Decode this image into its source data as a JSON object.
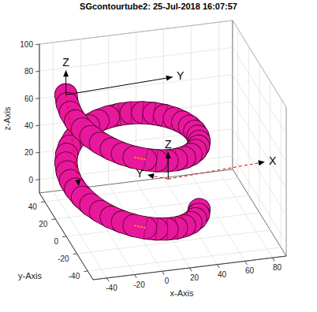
{
  "chart_data": {
    "type": "3d",
    "title": "SGcontourtube2: 25-Jul-2018 16:07:57",
    "x_label": "x-Axis",
    "y_label": "y-Axis",
    "z_label": "z-Axis",
    "xlim": [
      -50,
      90
    ],
    "ylim": [
      -50,
      50
    ],
    "zlim": [
      -10,
      100
    ],
    "xticks": [
      -40,
      -20,
      0,
      20,
      40,
      60,
      80
    ],
    "yticks": [
      -40,
      -20,
      0,
      20,
      40
    ],
    "zticks": [
      0,
      20,
      40,
      60,
      80,
      100
    ],
    "grid": true,
    "series": [
      {
        "type": "tube",
        "color": "#e8189c",
        "tube_radius": 8,
        "x": [
          42.3,
          39,
          34.5,
          28.9,
          22.5,
          15.4,
          7.8,
          0,
          -7.8,
          -15.4,
          -22.5,
          -28.9,
          -34.5,
          -39,
          -42.3,
          -44.3,
          -45,
          -44.3,
          -42.3,
          -39,
          -34.5,
          -28.9,
          -22.5,
          -15.4,
          -7.8,
          0,
          7.8,
          15.4,
          22.5,
          28.9,
          34.5,
          39,
          42.3,
          44.3,
          45,
          44.3,
          42.3,
          39,
          34.5,
          28.9,
          22.5,
          15.4,
          7.8,
          0,
          -7.8,
          -15.4,
          -22.5,
          -28.9,
          -34.5,
          -39,
          -42.3,
          -44.3,
          -45,
          -44.3,
          -42.3
        ],
        "y": [
          -10.4,
          -17.5,
          -23.9,
          -29.5,
          -34,
          -37.3,
          -39.3,
          -40,
          -39.3,
          -37.3,
          -34,
          -29.5,
          -23.9,
          -17.5,
          -10.4,
          -2.8,
          5,
          12.8,
          20.4,
          27.5,
          33.9,
          39.5,
          44,
          47.3,
          49.3,
          50,
          49.3,
          47.3,
          44,
          39.5,
          33.9,
          27.5,
          20.4,
          12.8,
          5,
          -2.8,
          -10.4,
          -17.5,
          -23.9,
          -29.5,
          -34,
          -37.3,
          -39.3,
          -40,
          -39.3,
          -37.3,
          -34,
          -29.5,
          -23.9,
          -17.5,
          -10.4,
          -2.8,
          5,
          12.8,
          20.4
        ],
        "z": [
          5,
          6.4,
          7.8,
          9.2,
          10.6,
          12,
          13.4,
          14.8,
          16.2,
          17.6,
          19,
          20.4,
          21.8,
          23.2,
          24.6,
          26,
          27.4,
          28.8,
          30.2,
          31.6,
          33,
          34.4,
          35.8,
          37.2,
          38.6,
          40,
          41.4,
          42.8,
          44.2,
          45.6,
          47,
          48.4,
          49.8,
          51.2,
          52.6,
          54,
          55.4,
          56.8,
          58.2,
          59.6,
          61,
          62.4,
          63.8,
          65.2,
          66.6,
          68,
          69.4,
          70.8,
          72.2,
          73.6,
          75,
          76.4,
          77.8,
          79.2,
          80.6
        ]
      },
      {
        "type": "line",
        "color": "#e00000",
        "x": [
          10,
          8.7,
          5,
          0,
          -5,
          -8.7,
          -10,
          -8.7,
          -5,
          0,
          5,
          8.7,
          10
        ],
        "y": [
          0,
          5,
          8.7,
          10,
          8.7,
          5,
          0,
          -5,
          -8.7,
          -10,
          -8.7,
          -5,
          0
        ],
        "z": [
          -10,
          -10,
          -10,
          -10,
          -10,
          -10,
          -10,
          -10,
          -10,
          -10,
          -10,
          -10,
          -10
        ]
      }
    ],
    "frames": [
      {
        "origin": {
          "x": -42.3,
          "y": 20.4,
          "z": 80.6
        },
        "axes": [
          {
            "label": "Z",
            "x": -42.3,
            "y": 20.4,
            "z": 98.6
          },
          {
            "label": "Y",
            "x": 35,
            "y": 20.4,
            "z": 84
          },
          {
            "x": -33,
            "y": 20.4,
            "z": 12,
            "color": "#e00000",
            "line_style": "dashed"
          }
        ]
      },
      {
        "origin": {
          "x": 20,
          "y": -10,
          "z": 30
        },
        "axes": [
          {
            "label": "Z",
            "x": 20,
            "y": -10,
            "z": 50
          },
          {
            "label": "Y",
            "x": 5,
            "y": -10,
            "z": 35,
            "color": "#e00000",
            "line_style": "dashed"
          },
          {
            "label": "X",
            "x": 90,
            "y": -10,
            "z": 34,
            "color": "#e00000",
            "line_style": "dashed"
          }
        ]
      }
    ]
  }
}
